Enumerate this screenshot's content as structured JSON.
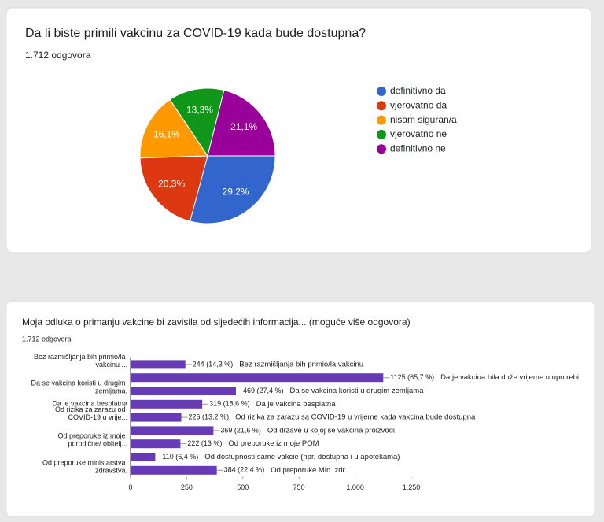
{
  "chart_data": [
    {
      "type": "pie",
      "title": "Da li biste primili vakcinu za COVID-19 kada bude dostupna?",
      "subtitle": "1.712 odgovora",
      "categories": [
        "definitivno da",
        "vjerovatno da",
        "nisam siguran/a",
        "vjerovatno ne",
        "definitivno ne"
      ],
      "values": [
        29.2,
        20.3,
        16.1,
        13.3,
        21.1
      ],
      "value_labels": [
        "29,2%",
        "20,3%",
        "16,1%",
        "13,3%",
        "21,1%"
      ],
      "colors": [
        "#3366cc",
        "#dc3912",
        "#ff9900",
        "#109618",
        "#990099"
      ],
      "legend": "right"
    },
    {
      "type": "hbar",
      "title": "Moja odluka o primanju vakcine bi zavisila od sljedećih informacija... (moguće više odgovora)",
      "subtitle": "1.712 odgovora",
      "categories": [
        "Bez razmišljanja bih primio/la vakcinu ...",
        null,
        "Da se vakcina koristi u drugim zemljama.",
        "Da je vakcina besplatna",
        "Od rizika za zarazu od COVID-19 u vrije...",
        null,
        "Od preporuke iz moje porodične/ obitelj...",
        null,
        "Od preporuke ministarstva zdravstva."
      ],
      "values": [
        244,
        1125,
        469,
        319,
        226,
        369,
        222,
        110,
        384
      ],
      "value_labels": [
        "244 (14,3 %)",
        "1125 (65,7 %)",
        "469 (27,4 %)",
        "319 (18,6 %)",
        "226 (13,2 %)",
        "369 (21,6 %)",
        "222 (13 %)",
        "110 (6,4 %)",
        "384 (22,4 %)"
      ],
      "annotations": [
        "Bez razmišljanja bih primio/la vakcinu",
        "Da je vakcina bila duže vrijeme u upotrebi",
        "Da se vakcina koristi u drugim zemljama",
        "Da je vakcina besplatna",
        "Od rizika za zarazu sa COVID-19 u vrijeme kada vakcina bude dostupna",
        "Od države u kojoj se vakcina proizvodi",
        "Od preporuke iz moje POM",
        "Od dostupnosti same vakcie (npr. dostupna i u apotekama)",
        "Od preporuke Min. zdr."
      ],
      "color": "#673ab7",
      "xlim": [
        0,
        1250
      ],
      "xticks": [
        0,
        250,
        500,
        750,
        {
          "value": 1000,
          "label": "1.000"
        },
        {
          "value": 1250,
          "label": "1.250"
        }
      ]
    }
  ]
}
